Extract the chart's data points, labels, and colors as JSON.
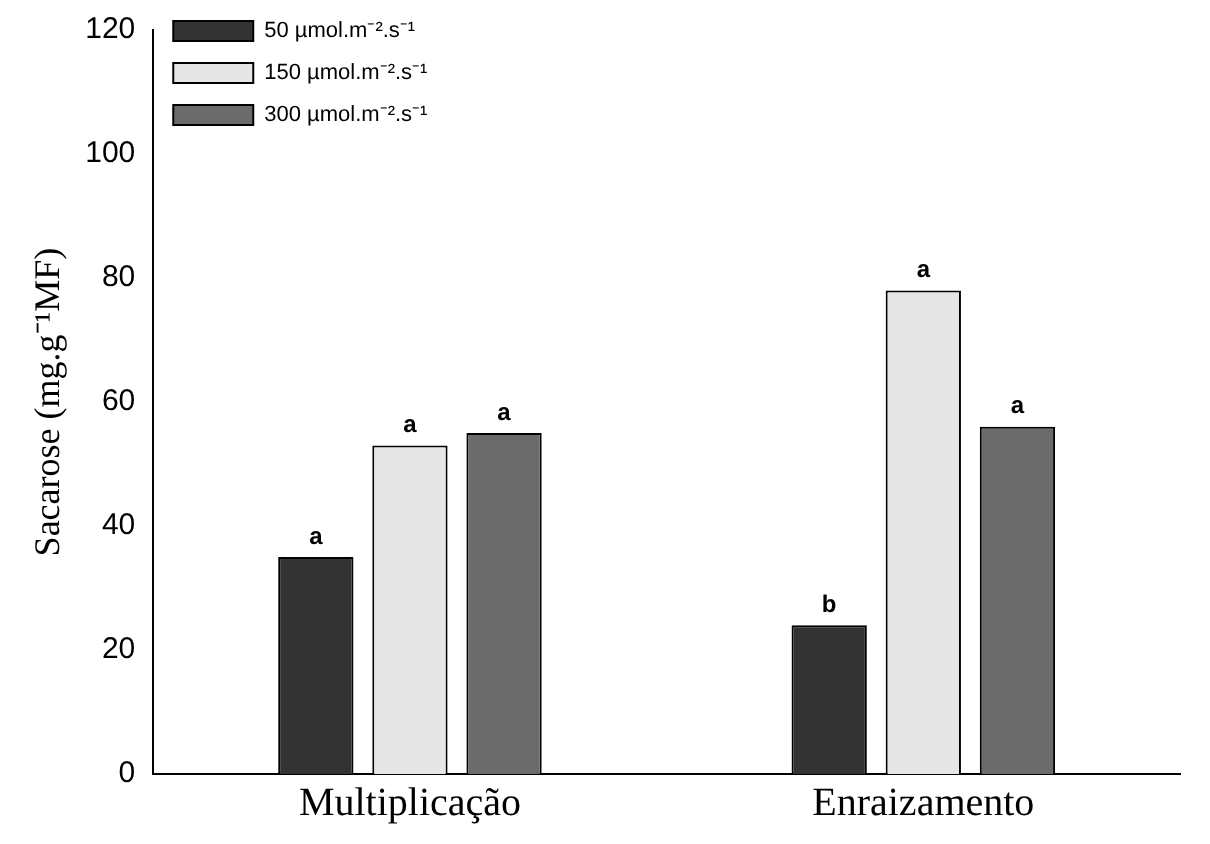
{
  "chart_data": {
    "type": "bar",
    "ylabel": "Sacarose (mg.g⁻¹MF)",
    "categories": [
      "Multiplicação",
      "Enraizamento"
    ],
    "series": [
      {
        "name": "50 µmol.m⁻².s⁻¹",
        "color": "#333333",
        "values": [
          35,
          24
        ],
        "value_labels": [
          "a",
          "b"
        ]
      },
      {
        "name": "150 µmol.m⁻².s⁻¹",
        "color": "#e6e6e6",
        "values": [
          53,
          78
        ],
        "value_labels": [
          "a",
          "a"
        ]
      },
      {
        "name": "300 µmol.m⁻².s⁻¹",
        "color": "#6b6b6b",
        "values": [
          55,
          56
        ],
        "value_labels": [
          "a",
          "a"
        ]
      }
    ],
    "ylim": [
      0,
      120
    ],
    "yticks": [
      0,
      20,
      40,
      60,
      80,
      100,
      120
    ],
    "grid": false,
    "legend": "top left"
  }
}
